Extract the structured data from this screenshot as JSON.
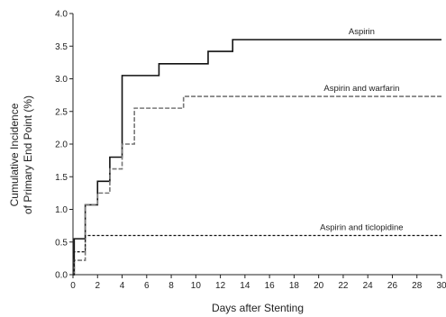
{
  "chart_data": {
    "type": "line",
    "xlabel": "Days after Stenting",
    "ylabel_lines": [
      "Cumulative Incidence",
      "of Primary End Point (%)"
    ],
    "xlim": [
      0,
      30
    ],
    "ylim": [
      0,
      4.0
    ],
    "x_ticks": [
      0,
      2,
      4,
      6,
      8,
      10,
      12,
      14,
      16,
      18,
      20,
      22,
      24,
      26,
      28,
      30
    ],
    "y_ticks": [
      {
        "value": 0.0,
        "label": "0.0"
      },
      {
        "value": 0.5,
        "label": "0.5"
      },
      {
        "value": 1.0,
        "label": "1.0"
      },
      {
        "value": 1.5,
        "label": "1.5"
      },
      {
        "value": 2.0,
        "label": "2.0"
      },
      {
        "value": 2.5,
        "label": "2.5"
      },
      {
        "value": 3.0,
        "label": "3.0"
      },
      {
        "value": 3.5,
        "label": "3.5"
      },
      {
        "value": 4.0,
        "label": "4.0"
      }
    ],
    "grid": false,
    "step": true,
    "series": [
      {
        "name": "Aspirin",
        "color": "#111111",
        "style": "solid",
        "x": [
          0,
          0.1,
          1,
          2,
          3,
          4,
          5,
          7,
          9,
          11,
          13,
          30
        ],
        "y": [
          0,
          0.55,
          1.07,
          1.43,
          1.8,
          3.05,
          3.05,
          3.23,
          3.23,
          3.42,
          3.6,
          3.6
        ]
      },
      {
        "name": "Aspirin and warfarin",
        "color": "#777777",
        "style": "dashed",
        "x": [
          0,
          0.1,
          1,
          2,
          3,
          4,
          5,
          7,
          9,
          30
        ],
        "y": [
          0,
          0.22,
          1.07,
          1.25,
          1.62,
          2.0,
          2.55,
          2.55,
          2.73,
          2.73
        ]
      },
      {
        "name": "Aspirin and ticlopidine",
        "color": "#111111",
        "style": "dotted",
        "x": [
          0,
          0.1,
          1,
          30
        ],
        "y": [
          0,
          0.35,
          0.6,
          0.6
        ]
      }
    ]
  }
}
